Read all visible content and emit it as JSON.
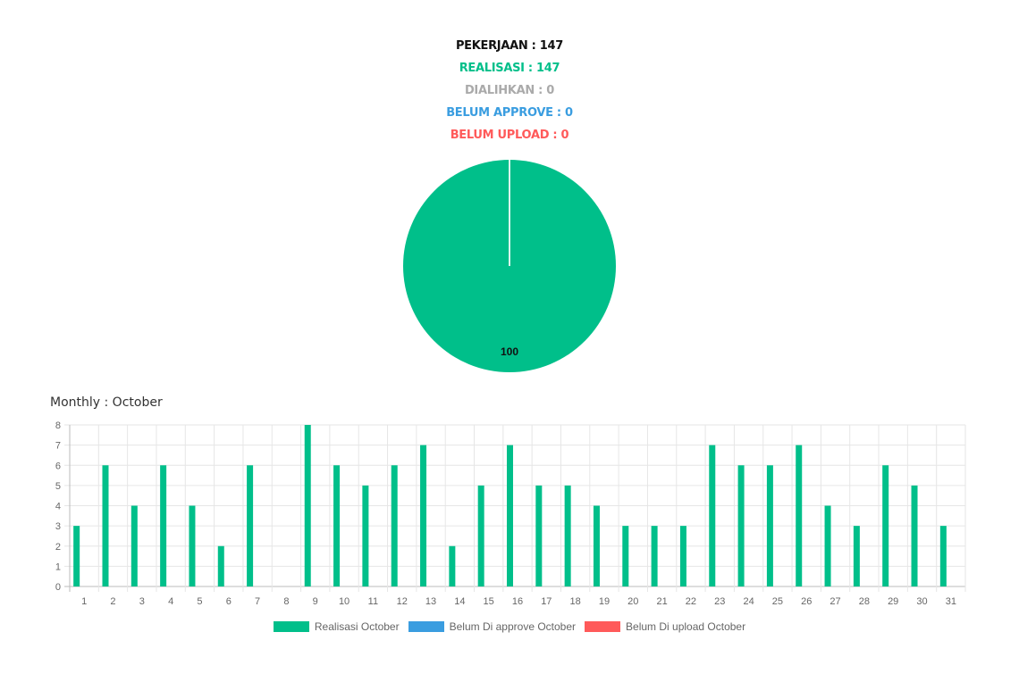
{
  "summary": {
    "pekerjaan": "PEKERJAAN : 147",
    "realisasi": "REALISASI : 147",
    "dialihkan": "DIALIHKAN : 0",
    "belum_approve": "BELUM APPROVE : 0",
    "belum_upload": "BELUM UPLOAD : 0"
  },
  "colors": {
    "pekerjaan": "#111111",
    "realisasi": "#00bf8a",
    "dialihkan": "#aaaaaa",
    "belum_approve": "#3a9de0",
    "belum_upload": "#ff5a5a"
  },
  "monthly_title": "Monthly : October",
  "legend": [
    {
      "label": "Realisasi October",
      "color": "#00bf8a"
    },
    {
      "label": "Belum Di approve October",
      "color": "#3a9de0"
    },
    {
      "label": "Belum Di upload October",
      "color": "#ff5a5a"
    }
  ],
  "chart_data": [
    {
      "type": "pie",
      "slices": [
        {
          "value": 100,
          "label": "100",
          "color": "#00bf8a"
        }
      ]
    },
    {
      "type": "bar",
      "title": "Monthly : October",
      "categories": [
        "1",
        "2",
        "3",
        "4",
        "5",
        "6",
        "7",
        "8",
        "9",
        "10",
        "11",
        "12",
        "13",
        "14",
        "15",
        "16",
        "17",
        "18",
        "19",
        "20",
        "21",
        "22",
        "23",
        "24",
        "25",
        "26",
        "27",
        "28",
        "29",
        "30",
        "31"
      ],
      "series": [
        {
          "name": "Realisasi October",
          "color": "#00bf8a",
          "values": [
            3,
            6,
            4,
            6,
            4,
            2,
            6,
            0,
            8,
            6,
            5,
            6,
            7,
            2,
            5,
            7,
            5,
            5,
            4,
            3,
            3,
            3,
            7,
            6,
            6,
            7,
            4,
            3,
            6,
            5,
            3
          ]
        },
        {
          "name": "Belum Di approve October",
          "color": "#3a9de0",
          "values": [
            0,
            0,
            0,
            0,
            0,
            0,
            0,
            0,
            0,
            0,
            0,
            0,
            0,
            0,
            0,
            0,
            0,
            0,
            0,
            0,
            0,
            0,
            0,
            0,
            0,
            0,
            0,
            0,
            0,
            0,
            0
          ]
        },
        {
          "name": "Belum Di upload October",
          "color": "#ff5a5a",
          "values": [
            0,
            0,
            0,
            0,
            0,
            0,
            0,
            0,
            0,
            0,
            0,
            0,
            0,
            0,
            0,
            0,
            0,
            0,
            0,
            0,
            0,
            0,
            0,
            0,
            0,
            0,
            0,
            0,
            0,
            0,
            0
          ]
        }
      ],
      "yticks": [
        "0",
        "1",
        "2",
        "3",
        "4",
        "5",
        "6",
        "7",
        "8"
      ],
      "ylim": [
        0,
        8
      ],
      "grid": true,
      "legend_position": "bottom"
    }
  ]
}
